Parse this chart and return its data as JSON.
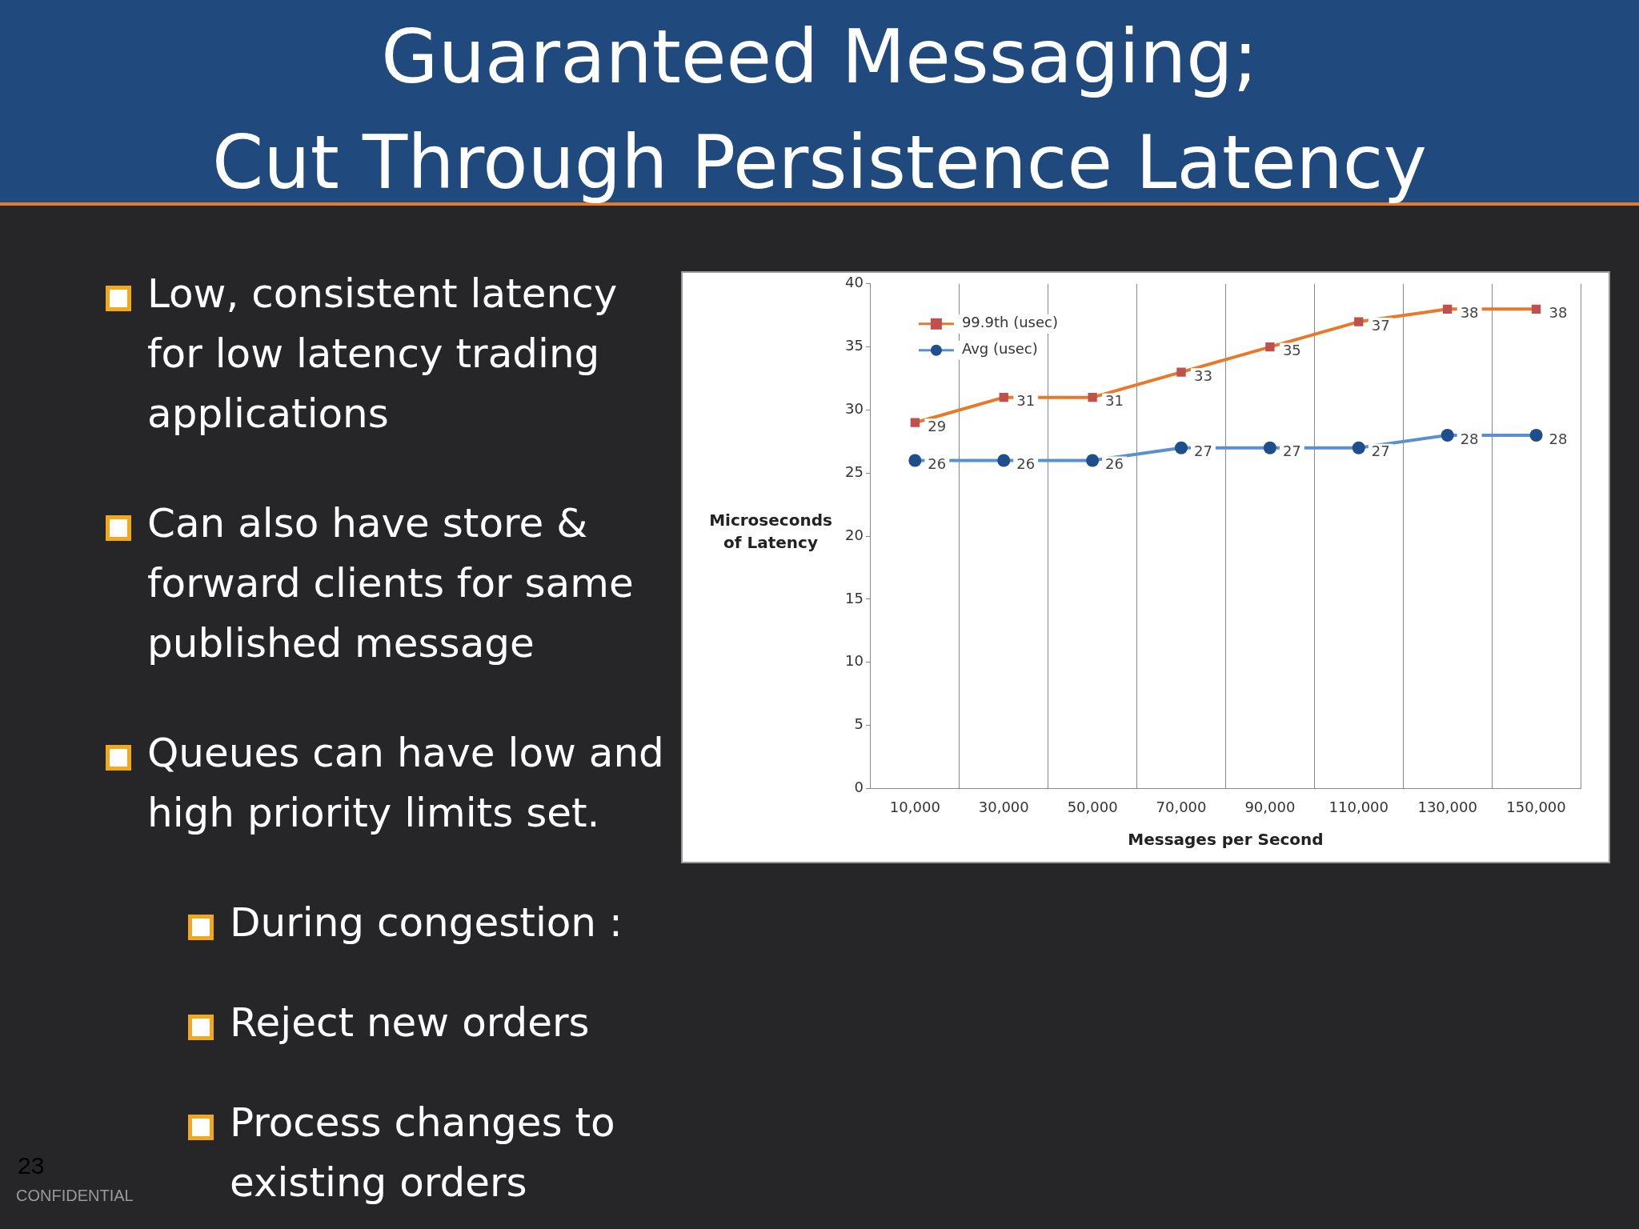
{
  "chart_data": {
    "type": "line",
    "title": "Guaranteed Messaging;\nCut Through Persistence Latency",
    "xlabel": "Messages per Second",
    "ylabel": "Microseconds of Latency",
    "categories": [
      "10,000",
      "30,000",
      "50,000",
      "70,000",
      "90,000",
      "110,000",
      "130,000",
      "150,000"
    ],
    "series": [
      {
        "name": "99.9th (usec)",
        "color": "#e8782a",
        "marker": "square",
        "values": [
          29,
          31,
          31,
          33,
          35,
          37,
          38,
          38
        ]
      },
      {
        "name": "Avg (usec)",
        "color": "#5b8fd0",
        "marker": "circle",
        "values": [
          26,
          26,
          26,
          27,
          27,
          27,
          28,
          28
        ]
      }
    ],
    "ylim": [
      0,
      40
    ],
    "yticks": [
      0,
      5,
      10,
      15,
      20,
      25,
      30,
      35,
      40
    ],
    "grid": "x",
    "legend": "top left",
    "data_labels": true,
    "annotations": [
      "Low, consistent latency for low latency trading applications",
      "Can also have store & forward clients for same published message",
      "Queues can have low and high priority limits set.",
      "During congestion :",
      "Reject new orders",
      "Process changes to existing orders",
      "23",
      "CONFIDENTIAL"
    ]
  }
}
